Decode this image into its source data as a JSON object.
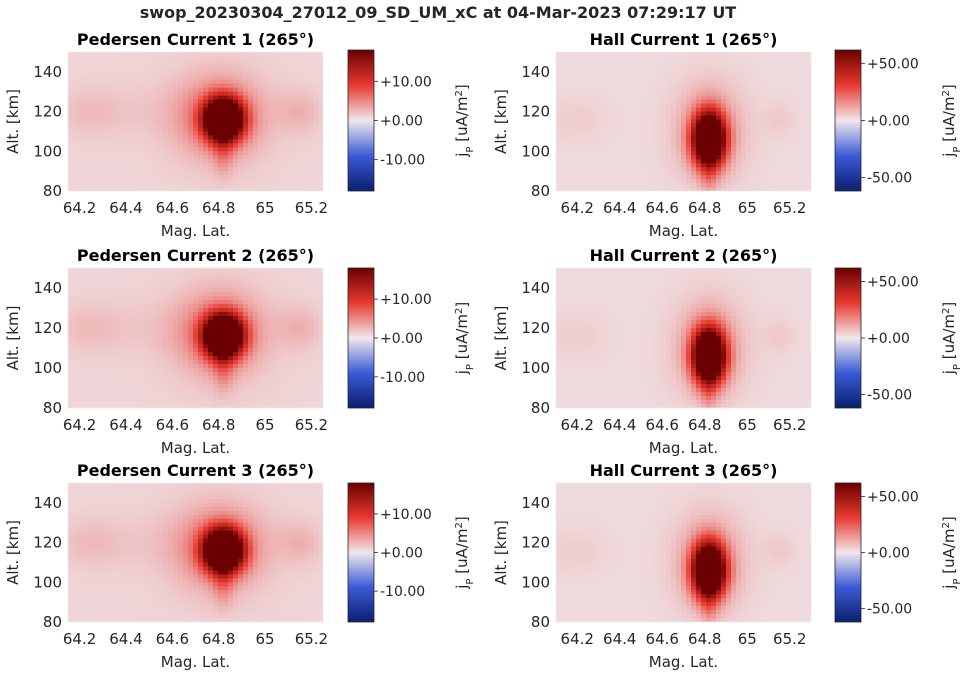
{
  "figure": {
    "suptitle": "swop_20230304_27012_09_SD_UM_xC at 04-Mar-2023 07:29:17 UT"
  },
  "colors": {
    "cmap_low": "#0a1f6e",
    "cmap_mid": "#f0e8ec",
    "cmap_high": "#6a0000",
    "background": "#f2e4e6"
  },
  "chart_data": [
    {
      "type": "heatmap",
      "name": "pedersen-1",
      "title": "Pedersen Current 1 (265°)",
      "xlabel": "Mag. Lat.",
      "ylabel": "Alt. [km]",
      "xlim": [
        64.15,
        65.25
      ],
      "ylim": [
        80,
        150
      ],
      "xticks": [
        "64.2",
        "64.4",
        "64.6",
        "64.8",
        "65",
        "65.2"
      ],
      "xtick_values": [
        64.2,
        64.4,
        64.6,
        64.8,
        65.0,
        65.2
      ],
      "yticks": [
        "80",
        "100",
        "120",
        "140"
      ],
      "ytick_values": [
        80,
        100,
        120,
        140
      ],
      "colorbar": {
        "label": "j_P [uA/m^2]",
        "vlim": [
          -18,
          18
        ],
        "ticks": [
          "+10.00",
          "+0.00",
          "-10.00"
        ],
        "tick_values": [
          10,
          0,
          -10
        ]
      },
      "background_value": 1.0,
      "peak": {
        "lat": 64.82,
        "alt": 116,
        "value": 30
      },
      "blobs": [
        {
          "lat": 64.82,
          "alt": 116,
          "amp": 35,
          "sx": 0.055,
          "sy": 7
        },
        {
          "lat": 64.8,
          "alt": 117,
          "amp": 5,
          "sx": 0.13,
          "sy": 15
        },
        {
          "lat": 64.82,
          "alt": 100,
          "amp": 3,
          "sx": 0.03,
          "sy": 8
        },
        {
          "lat": 64.25,
          "alt": 120,
          "amp": 1.2,
          "sx": 0.1,
          "sy": 8
        },
        {
          "lat": 65.15,
          "alt": 120,
          "amp": 1.6,
          "sx": 0.06,
          "sy": 7
        },
        {
          "lat": 64.7,
          "alt": 120,
          "amp": 0.8,
          "sx": 0.3,
          "sy": 10
        }
      ]
    },
    {
      "type": "heatmap",
      "name": "hall-1",
      "title": "Hall Current 1 (265°)",
      "xlabel": "Mag. Lat.",
      "ylabel": "Alt. [km]",
      "xlim": [
        64.1,
        65.3
      ],
      "ylim": [
        80,
        150
      ],
      "xticks": [
        "64.2",
        "64.4",
        "64.6",
        "64.8",
        "65",
        "65.2"
      ],
      "xtick_values": [
        64.2,
        64.4,
        64.6,
        64.8,
        65.0,
        65.2
      ],
      "yticks": [
        "80",
        "100",
        "120",
        "140"
      ],
      "ytick_values": [
        80,
        100,
        120,
        140
      ],
      "colorbar": {
        "label": "j_P [uA/m^2]",
        "vlim": [
          -62,
          62
        ],
        "ticks": [
          "+50.00",
          "+0.00",
          "-50.00"
        ],
        "tick_values": [
          50,
          0,
          -50
        ]
      },
      "background_value": 2.5,
      "peak": {
        "lat": 64.82,
        "alt": 106,
        "value": 90
      },
      "blobs": [
        {
          "lat": 64.82,
          "alt": 106,
          "amp": 110,
          "sx": 0.05,
          "sy": 9
        },
        {
          "lat": 64.82,
          "alt": 110,
          "amp": 14,
          "sx": 0.11,
          "sy": 16
        },
        {
          "lat": 64.82,
          "alt": 88,
          "amp": 8,
          "sx": 0.025,
          "sy": 8
        },
        {
          "lat": 64.2,
          "alt": 116,
          "amp": 2.5,
          "sx": 0.1,
          "sy": 8
        },
        {
          "lat": 65.15,
          "alt": 116,
          "amp": 3,
          "sx": 0.05,
          "sy": 6
        }
      ]
    },
    {
      "type": "heatmap",
      "name": "pedersen-2",
      "title": "Pedersen Current 2 (265°)",
      "xlabel": "Mag. Lat.",
      "ylabel": "Alt. [km]",
      "xlim": [
        64.15,
        65.25
      ],
      "ylim": [
        80,
        150
      ],
      "xticks": [
        "64.2",
        "64.4",
        "64.6",
        "64.8",
        "65",
        "65.2"
      ],
      "xtick_values": [
        64.2,
        64.4,
        64.6,
        64.8,
        65.0,
        65.2
      ],
      "yticks": [
        "80",
        "100",
        "120",
        "140"
      ],
      "ytick_values": [
        80,
        100,
        120,
        140
      ],
      "colorbar": {
        "label": "j_P [uA/m^2]",
        "vlim": [
          -18,
          18
        ],
        "ticks": [
          "+10.00",
          "+0.00",
          "-10.00"
        ],
        "tick_values": [
          10,
          0,
          -10
        ]
      },
      "background_value": 1.0,
      "peak": {
        "lat": 64.82,
        "alt": 116,
        "value": 30
      },
      "blobs": [
        {
          "lat": 64.82,
          "alt": 116,
          "amp": 35,
          "sx": 0.055,
          "sy": 7
        },
        {
          "lat": 64.8,
          "alt": 117,
          "amp": 5,
          "sx": 0.13,
          "sy": 15
        },
        {
          "lat": 64.82,
          "alt": 100,
          "amp": 3,
          "sx": 0.03,
          "sy": 8
        },
        {
          "lat": 64.25,
          "alt": 120,
          "amp": 1.2,
          "sx": 0.1,
          "sy": 8
        },
        {
          "lat": 65.15,
          "alt": 120,
          "amp": 1.6,
          "sx": 0.06,
          "sy": 7
        },
        {
          "lat": 64.7,
          "alt": 120,
          "amp": 0.8,
          "sx": 0.3,
          "sy": 10
        }
      ]
    },
    {
      "type": "heatmap",
      "name": "hall-2",
      "title": "Hall Current 2 (265°)",
      "xlabel": "Mag. Lat.",
      "ylabel": "Alt. [km]",
      "xlim": [
        64.1,
        65.3
      ],
      "ylim": [
        80,
        150
      ],
      "xticks": [
        "64.2",
        "64.4",
        "64.6",
        "64.8",
        "65",
        "65.2"
      ],
      "xtick_values": [
        64.2,
        64.4,
        64.6,
        64.8,
        65.0,
        65.2
      ],
      "yticks": [
        "80",
        "100",
        "120",
        "140"
      ],
      "ytick_values": [
        80,
        100,
        120,
        140
      ],
      "colorbar": {
        "label": "j_P [uA/m^2]",
        "vlim": [
          -62,
          62
        ],
        "ticks": [
          "+50.00",
          "+0.00",
          "-50.00"
        ],
        "tick_values": [
          50,
          0,
          -50
        ]
      },
      "background_value": 2.5,
      "peak": {
        "lat": 64.82,
        "alt": 106,
        "value": 90
      },
      "blobs": [
        {
          "lat": 64.82,
          "alt": 106,
          "amp": 110,
          "sx": 0.05,
          "sy": 9
        },
        {
          "lat": 64.82,
          "alt": 110,
          "amp": 14,
          "sx": 0.11,
          "sy": 16
        },
        {
          "lat": 64.82,
          "alt": 88,
          "amp": 8,
          "sx": 0.025,
          "sy": 8
        },
        {
          "lat": 64.2,
          "alt": 116,
          "amp": 2.5,
          "sx": 0.1,
          "sy": 8
        },
        {
          "lat": 65.15,
          "alt": 116,
          "amp": 3,
          "sx": 0.05,
          "sy": 6
        }
      ]
    },
    {
      "type": "heatmap",
      "name": "pedersen-3",
      "title": "Pedersen Current 3 (265°)",
      "xlabel": "Mag. Lat.",
      "ylabel": "Alt. [km]",
      "xlim": [
        64.15,
        65.25
      ],
      "ylim": [
        80,
        150
      ],
      "xticks": [
        "64.2",
        "64.4",
        "64.6",
        "64.8",
        "65",
        "65.2"
      ],
      "xtick_values": [
        64.2,
        64.4,
        64.6,
        64.8,
        65.0,
        65.2
      ],
      "yticks": [
        "80",
        "100",
        "120",
        "140"
      ],
      "ytick_values": [
        80,
        100,
        120,
        140
      ],
      "colorbar": {
        "label": "j_P [uA/m^2]",
        "vlim": [
          -18,
          18
        ],
        "ticks": [
          "+10.00",
          "+0.00",
          "-10.00"
        ],
        "tick_values": [
          10,
          0,
          -10
        ]
      },
      "background_value": 1.0,
      "peak": {
        "lat": 64.82,
        "alt": 116,
        "value": 30
      },
      "blobs": [
        {
          "lat": 64.82,
          "alt": 116,
          "amp": 35,
          "sx": 0.055,
          "sy": 7
        },
        {
          "lat": 64.8,
          "alt": 117,
          "amp": 5,
          "sx": 0.13,
          "sy": 15
        },
        {
          "lat": 64.82,
          "alt": 100,
          "amp": 3,
          "sx": 0.03,
          "sy": 8
        },
        {
          "lat": 64.25,
          "alt": 120,
          "amp": 1.2,
          "sx": 0.1,
          "sy": 8
        },
        {
          "lat": 65.15,
          "alt": 120,
          "amp": 1.6,
          "sx": 0.06,
          "sy": 7
        },
        {
          "lat": 64.7,
          "alt": 120,
          "amp": 0.8,
          "sx": 0.3,
          "sy": 10
        }
      ]
    },
    {
      "type": "heatmap",
      "name": "hall-3",
      "title": "Hall Current 3 (265°)",
      "xlabel": "Mag. Lat.",
      "ylabel": "Alt. [km]",
      "xlim": [
        64.1,
        65.3
      ],
      "ylim": [
        80,
        150
      ],
      "xticks": [
        "64.2",
        "64.4",
        "64.6",
        "64.8",
        "65",
        "65.2"
      ],
      "xtick_values": [
        64.2,
        64.4,
        64.6,
        64.8,
        65.0,
        65.2
      ],
      "yticks": [
        "80",
        "100",
        "120",
        "140"
      ],
      "ytick_values": [
        80,
        100,
        120,
        140
      ],
      "colorbar": {
        "label": "j_P [uA/m^2]",
        "vlim": [
          -62,
          62
        ],
        "ticks": [
          "+50.00",
          "+0.00",
          "-50.00"
        ],
        "tick_values": [
          50,
          0,
          -50
        ]
      },
      "background_value": 2.5,
      "peak": {
        "lat": 64.82,
        "alt": 106,
        "value": 90
      },
      "blobs": [
        {
          "lat": 64.82,
          "alt": 106,
          "amp": 110,
          "sx": 0.05,
          "sy": 9
        },
        {
          "lat": 64.82,
          "alt": 110,
          "amp": 14,
          "sx": 0.11,
          "sy": 16
        },
        {
          "lat": 64.82,
          "alt": 88,
          "amp": 8,
          "sx": 0.025,
          "sy": 8
        },
        {
          "lat": 64.2,
          "alt": 116,
          "amp": 2.5,
          "sx": 0.1,
          "sy": 8
        },
        {
          "lat": 65.15,
          "alt": 116,
          "amp": 3,
          "sx": 0.05,
          "sy": 6
        }
      ]
    }
  ]
}
